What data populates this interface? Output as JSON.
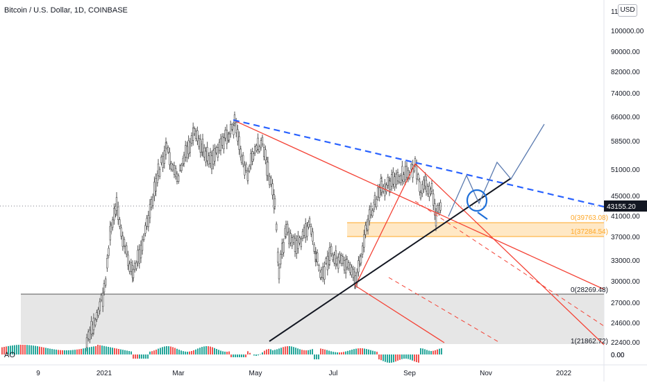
{
  "title": "Bitcoin / U.S. Dollar, 1D, COINBASE",
  "currency_badge": "USD",
  "indicator_label": "AO",
  "indicator_value": "0.00",
  "last_price_label": "43155.20",
  "colors": {
    "up": "#26a69a",
    "down": "#ef5350",
    "pitchfork": "#f44336",
    "trendline": "#131722",
    "resistance": "#2962ff",
    "projection": "#5b7bb0",
    "fib_band": "#ffe0b2",
    "fib_line": "#ffa726",
    "support_zone": "#e6e6e6",
    "axis_text": "#131722",
    "price_box": "#131722"
  },
  "chart_data": {
    "type": "candlestick",
    "title": "Bitcoin / U.S. Dollar, 1D, COINBASE",
    "x_tick_labels": [
      "9",
      "2021",
      "Mar",
      "May",
      "Jul",
      "Sep",
      "Nov",
      "2022"
    ],
    "y_tick_labels": [
      "110000.00",
      "100000.00",
      "90000.00",
      "82000.00",
      "74000.00",
      "66000.00",
      "58500.00",
      "51000.00",
      "45000.00",
      "41000.00",
      "37000.00",
      "33000.00",
      "30000.00",
      "27000.00",
      "24600.00",
      "22400.00",
      "0.00"
    ],
    "price_axis_visible_top": "11",
    "fib_levels": [
      {
        "label": "0(39763.08)",
        "value": 39763.08
      },
      {
        "label": "1(37284.54)",
        "value": 37284.54
      },
      {
        "label": "0(28269.48)",
        "value": 28269.48
      },
      {
        "label": "1(21862.72)",
        "value": 21862.72
      }
    ],
    "annotations": [
      "descending blue dashed resistance",
      "black ascending trendline",
      "red pitchfork",
      "projected zig-zag path",
      "circled breakout point"
    ]
  }
}
